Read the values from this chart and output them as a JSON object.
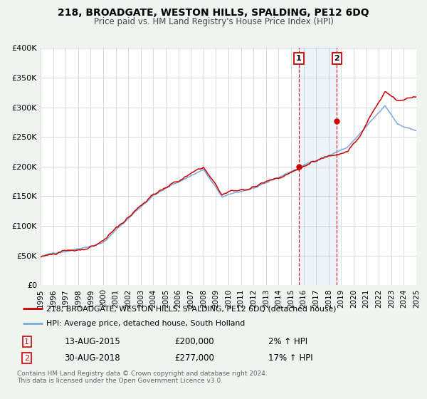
{
  "title": "218, BROADGATE, WESTON HILLS, SPALDING, PE12 6DQ",
  "subtitle": "Price paid vs. HM Land Registry's House Price Index (HPI)",
  "legend_line1": "218, BROADGATE, WESTON HILLS, SPALDING, PE12 6DQ (detached house)",
  "legend_line2": "HPI: Average price, detached house, South Holland",
  "footnote1": "Contains HM Land Registry data © Crown copyright and database right 2024.",
  "footnote2": "This data is licensed under the Open Government Licence v3.0.",
  "hpi_color": "#7aaadd",
  "price_color": "#cc0000",
  "background_color": "#f0f4f0",
  "plot_bg_color": "#ffffff",
  "grid_color": "#cccccc",
  "event1_x": 2015.617,
  "event1_y": 200000,
  "event2_x": 2018.664,
  "event2_y": 277000,
  "event1_date": "13-AUG-2015",
  "event1_price": "£200,000",
  "event1_hpi": "2% ↑ HPI",
  "event2_date": "30-AUG-2018",
  "event2_price": "£277,000",
  "event2_hpi": "17% ↑ HPI",
  "xmin": 1995,
  "xmax": 2025,
  "ymin": 0,
  "ymax": 400000,
  "yticks": [
    0,
    50000,
    100000,
    150000,
    200000,
    250000,
    300000,
    350000,
    400000
  ],
  "ytick_labels": [
    "£0",
    "£50K",
    "£100K",
    "£150K",
    "£200K",
    "£250K",
    "£300K",
    "£350K",
    "£400K"
  ],
  "xticks": [
    1995,
    1996,
    1997,
    1998,
    1999,
    2000,
    2001,
    2002,
    2003,
    2004,
    2005,
    2006,
    2007,
    2008,
    2009,
    2010,
    2011,
    2012,
    2013,
    2014,
    2015,
    2016,
    2017,
    2018,
    2019,
    2020,
    2021,
    2022,
    2023,
    2024,
    2025
  ]
}
